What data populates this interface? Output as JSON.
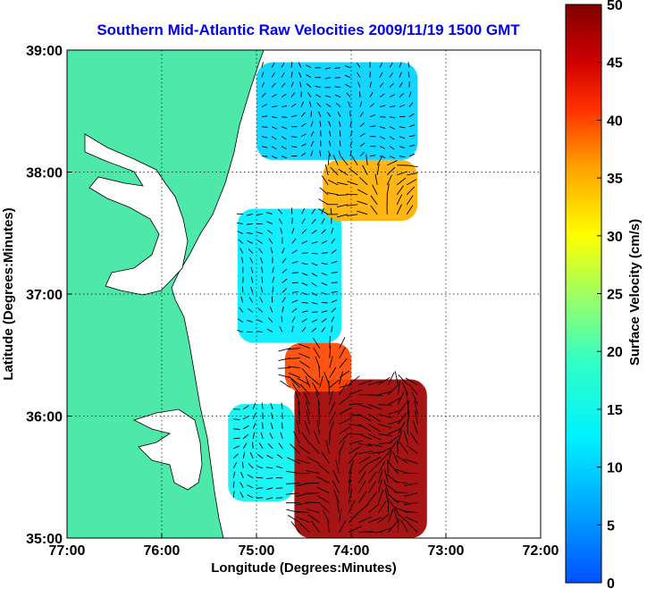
{
  "chart_data": {
    "type": "heatmap",
    "title": "Southern Mid-Atlantic Raw Velocities 2009/11/19 1500 GMT",
    "xlabel": "Longitude (Degrees:Minutes)",
    "ylabel": "Latitude (Degrees:Minutes)",
    "colorbar_label": "Surface Velocity (cm/s)",
    "xlim": [
      -77,
      -72
    ],
    "ylim": [
      35,
      39
    ],
    "clim": [
      0,
      50
    ],
    "x_ticks": [
      {
        "value": -77,
        "label": "77:00"
      },
      {
        "value": -76,
        "label": "76:00"
      },
      {
        "value": -75,
        "label": "75:00"
      },
      {
        "value": -74,
        "label": "74:00"
      },
      {
        "value": -73,
        "label": "73:00"
      },
      {
        "value": -72,
        "label": "72:00"
      }
    ],
    "y_ticks": [
      {
        "value": 35,
        "label": "35:00"
      },
      {
        "value": 36,
        "label": "36:00"
      },
      {
        "value": 37,
        "label": "37:00"
      },
      {
        "value": 38,
        "label": "38:00"
      },
      {
        "value": 39,
        "label": "39:00"
      }
    ],
    "colorbar_ticks": [
      0,
      5,
      10,
      15,
      20,
      25,
      30,
      35,
      40,
      45,
      50
    ],
    "grid": true,
    "colormap": "jet",
    "land_color": "#4ee8a8",
    "regions": [
      {
        "lon_min": -74.6,
        "lon_max": -73.2,
        "lat_min": 35.0,
        "lat_max": 36.3,
        "speed": 48
      },
      {
        "lon_min": -74.7,
        "lon_max": -74.0,
        "lat_min": 36.2,
        "lat_max": 36.6,
        "speed": 40
      },
      {
        "lon_min": -75.3,
        "lon_max": -74.6,
        "lat_min": 35.3,
        "lat_max": 36.1,
        "speed": 14
      },
      {
        "lon_min": -75.2,
        "lon_max": -74.1,
        "lat_min": 36.6,
        "lat_max": 37.7,
        "speed": 12
      },
      {
        "lon_min": -74.3,
        "lon_max": -73.3,
        "lat_min": 37.6,
        "lat_max": 38.1,
        "speed": 35
      },
      {
        "lon_min": -75.0,
        "lon_max": -73.3,
        "lat_min": 38.1,
        "lat_max": 38.9,
        "speed": 10
      }
    ]
  }
}
